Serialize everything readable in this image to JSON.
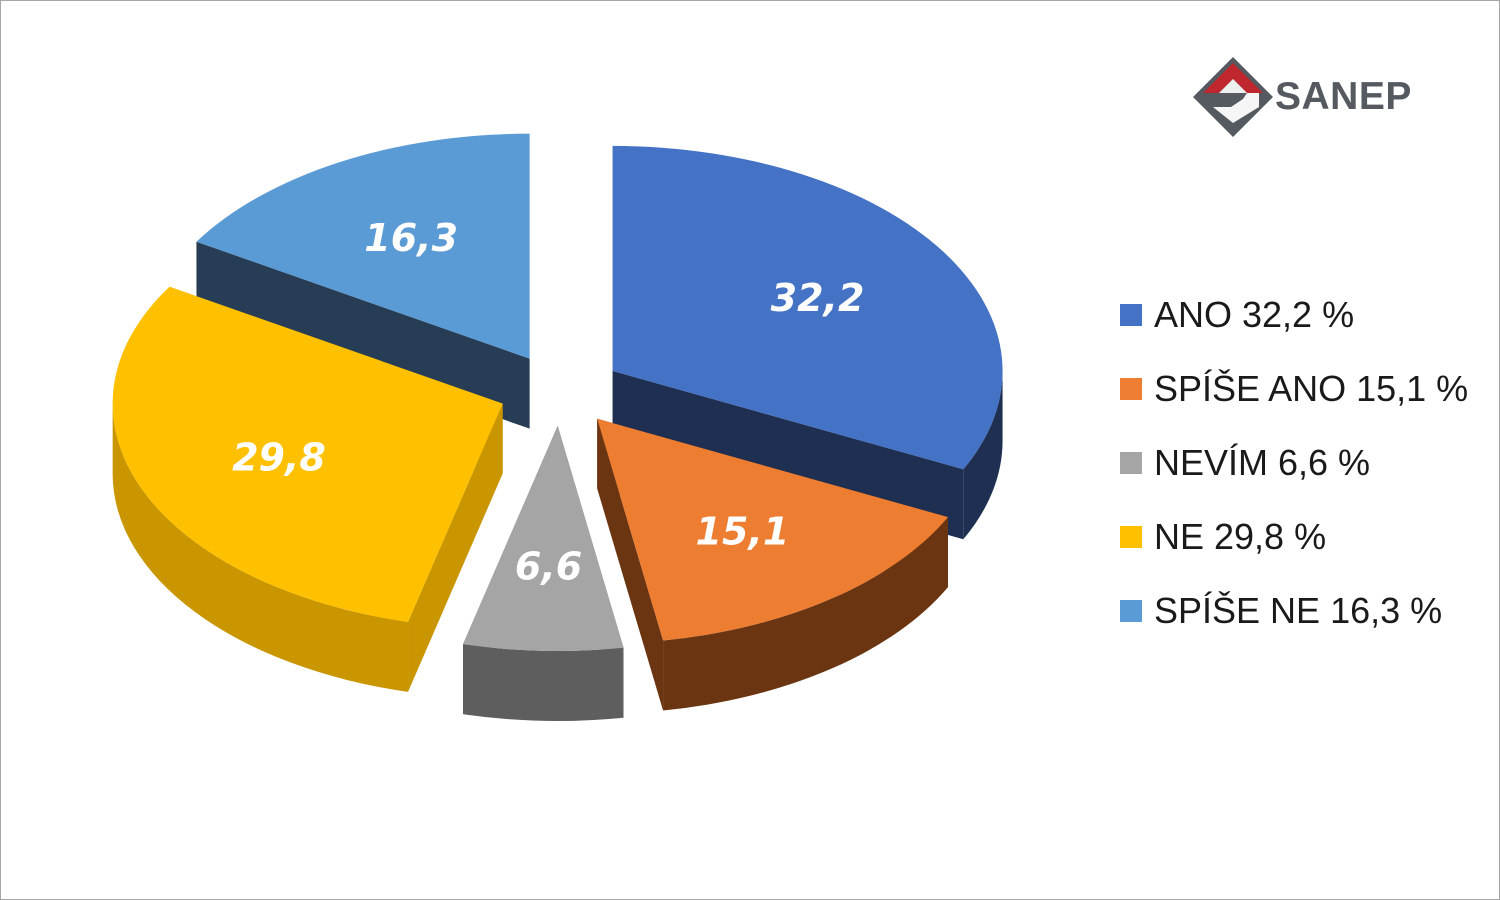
{
  "logo": {
    "text": "SANEP",
    "colors": {
      "red": "#c0262d",
      "gray": "#555a61"
    }
  },
  "chart_data": {
    "type": "pie",
    "style": "3d-exploded",
    "legend_position": "right",
    "slices": [
      {
        "name": "ANO",
        "value": 32.2,
        "label": "32,2",
        "legend": "ANO 32,2 %",
        "color": "#4472c4",
        "side_color": "#1f2f52"
      },
      {
        "name": "SPÍŠE ANO",
        "value": 15.1,
        "label": "15,1",
        "legend": "SPÍŠE ANO 15,1 %",
        "color": "#ed7d31",
        "side_color": "#6b3512"
      },
      {
        "name": "NEVÍM",
        "value": 6.6,
        "label": "6,6",
        "legend": "NEVÍM 6,6 %",
        "color": "#a5a5a5",
        "side_color": "#5e5e5e"
      },
      {
        "name": "NE",
        "value": 29.8,
        "label": "29,8",
        "legend": "NE 29,8 %",
        "color": "#ffc000",
        "side_color": "#c99600"
      },
      {
        "name": "SPÍŠE NE",
        "value": 16.3,
        "label": "16,3",
        "legend": "SPÍŠE NE 16,3 %",
        "color": "#5b9bd5",
        "side_color": "#263d55"
      }
    ]
  }
}
